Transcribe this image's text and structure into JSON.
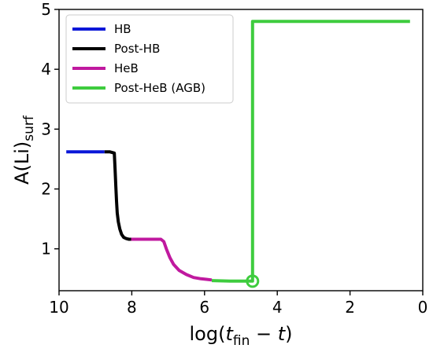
{
  "chart_data": {
    "type": "line",
    "xlabel": {
      "prefix": "log(",
      "var": "t",
      "sub": "fin",
      "suffix": " − ",
      "var2": "t",
      "close": ")"
    },
    "ylabel": {
      "main": "A(Li)",
      "sub": "surf"
    },
    "xlim": [
      10,
      0
    ],
    "ylim": [
      0.3,
      5.0
    ],
    "x_ticks": [
      10,
      8,
      6,
      4,
      2,
      0
    ],
    "y_ticks": [
      1,
      2,
      3,
      4,
      5
    ],
    "grid": false,
    "legend_position": "top-left",
    "series": [
      {
        "name": "HB",
        "color": "#0a17d8",
        "x": [
          9.8,
          9.4,
          9.0,
          8.75
        ],
        "y": [
          2.62,
          2.62,
          2.62,
          2.62
        ]
      },
      {
        "name": "Post-HB",
        "color": "#000000",
        "x": [
          8.75,
          8.6,
          8.48,
          8.46,
          8.44,
          8.42,
          8.4,
          8.37,
          8.33,
          8.28,
          8.22,
          8.15,
          8.08,
          8.02
        ],
        "y": [
          2.62,
          2.62,
          2.6,
          2.35,
          2.05,
          1.8,
          1.6,
          1.45,
          1.33,
          1.24,
          1.19,
          1.17,
          1.16,
          1.16
        ]
      },
      {
        "name": "HeB",
        "color": "#c0199f",
        "x": [
          8.02,
          7.8,
          7.5,
          7.2,
          7.12,
          7.05,
          6.95,
          6.85,
          6.7,
          6.5,
          6.3,
          6.1,
          5.95,
          5.8
        ],
        "y": [
          1.16,
          1.16,
          1.16,
          1.16,
          1.12,
          1.0,
          0.85,
          0.74,
          0.64,
          0.57,
          0.52,
          0.5,
          0.49,
          0.48
        ]
      },
      {
        "name": "Post-HeB (AGB)",
        "color": "#3ecc3e",
        "x": [
          5.8,
          5.3,
          4.9,
          4.68,
          4.68,
          4.68,
          3.0,
          1.0,
          0.35
        ],
        "y": [
          0.47,
          0.46,
          0.46,
          0.46,
          0.46,
          4.8,
          4.8,
          4.8,
          4.8
        ]
      }
    ],
    "marker": {
      "x": 4.68,
      "y": 0.46,
      "color": "#3ecc3e",
      "shape": "open-circle"
    }
  }
}
